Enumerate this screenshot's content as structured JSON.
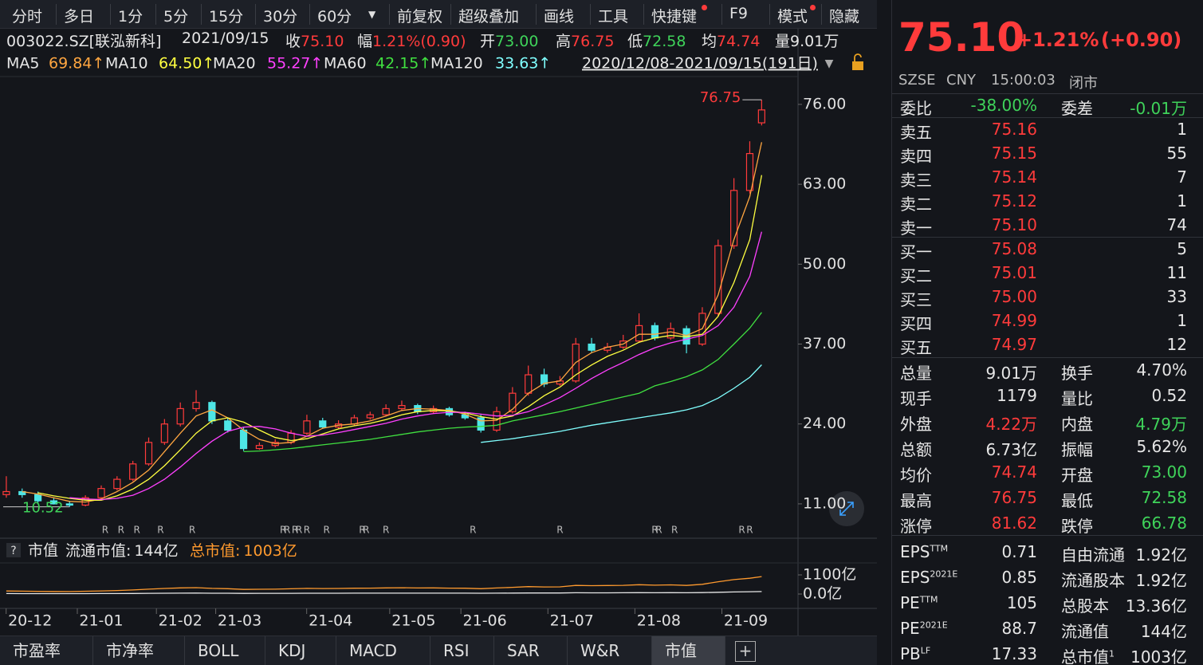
{
  "toolbar": [
    "分时",
    "多日",
    "1分",
    "5分",
    "15分",
    "30分",
    "60分",
    "前复权",
    "超级叠加",
    "画线",
    "工具",
    "快捷键",
    "F9",
    "模式",
    "隐藏"
  ],
  "info_bar": {
    "symbol": "003022.SZ[联泓新科]",
    "date": "2021/09/15",
    "items": [
      {
        "label": "收",
        "value": "75.10",
        "tone": "up"
      },
      {
        "label": "幅",
        "value": "1.21%(0.90)",
        "tone": "up"
      },
      {
        "label": "开",
        "value": "73.00",
        "tone": "down"
      },
      {
        "label": "高",
        "value": "76.75",
        "tone": "up"
      },
      {
        "label": "低",
        "value": "72.58",
        "tone": "down"
      },
      {
        "label": "均",
        "value": "74.74",
        "tone": "up"
      },
      {
        "label": "量",
        "value": "9.01万",
        "tone": "plain"
      }
    ]
  },
  "range_label": "2020/12/08-2021/09/15(191日)",
  "chart_data": [
    {
      "type": "candlestick",
      "x": [
        0,
        4,
        8,
        12,
        16,
        20,
        24,
        28,
        32,
        36,
        40,
        44,
        48,
        52,
        56,
        60,
        64,
        68,
        72,
        76,
        80,
        84,
        88,
        92,
        96,
        100,
        104,
        108,
        112,
        116,
        120,
        124,
        128,
        132,
        136,
        140,
        144,
        148,
        152,
        156,
        160,
        164,
        168,
        172,
        176,
        180,
        184,
        188,
        191
      ],
      "open": [
        12.5,
        13,
        12.5,
        11.5,
        11,
        10.8,
        12,
        13.5,
        15,
        17.5,
        21,
        24,
        26.5,
        27.5,
        24.5,
        23,
        20,
        20.5,
        21,
        22.5,
        24.5,
        23.5,
        24,
        25,
        25.5,
        26.5,
        27,
        26,
        26.5,
        25.5,
        25,
        23,
        26,
        29,
        32,
        30.5,
        31,
        37,
        36,
        36.5,
        37.5,
        40,
        38,
        39.5,
        37,
        42,
        53,
        62,
        73
      ],
      "high": [
        15.5,
        13.5,
        13,
        12,
        11.5,
        12.4,
        14,
        15.5,
        18,
        21.8,
        24.8,
        27.5,
        29.5,
        27.8,
        25,
        23.5,
        21,
        21.5,
        23,
        25.5,
        25,
        24.6,
        25.5,
        26,
        27.2,
        27.8,
        27.3,
        27,
        26.8,
        26,
        25.5,
        26.8,
        30,
        33.5,
        33,
        31.8,
        38,
        38,
        37.2,
        38.5,
        42,
        40.5,
        40.5,
        40,
        43,
        54,
        64,
        70,
        76.75
      ],
      "low": [
        12,
        12,
        11.2,
        10.9,
        10.52,
        10.6,
        11.6,
        13.2,
        14.7,
        17.2,
        20.6,
        23.6,
        26,
        24,
        22.6,
        19.6,
        19.8,
        20.2,
        20.7,
        22.2,
        23.2,
        23.2,
        23.7,
        24.7,
        25.2,
        26.2,
        25.6,
        25.7,
        25.2,
        24.7,
        22.6,
        22.7,
        25.7,
        28.6,
        30,
        30.2,
        30.7,
        35.6,
        35.6,
        36.2,
        37.2,
        37.6,
        37.7,
        35.5,
        36.7,
        41.6,
        52.5,
        61.5,
        72.58
      ],
      "close": [
        13,
        12.5,
        11.5,
        11,
        10.8,
        12,
        13.5,
        15,
        17.5,
        21,
        24,
        26.5,
        27.5,
        24.5,
        23,
        20,
        20.5,
        21,
        22.5,
        24.5,
        23.5,
        24,
        25,
        25.5,
        26.5,
        27,
        26,
        26.5,
        25.5,
        25,
        23,
        26,
        29,
        32,
        30.5,
        31,
        37,
        36,
        36.5,
        37.5,
        40,
        38,
        39.5,
        37,
        42,
        53,
        62,
        68,
        75.1
      ],
      "up_color": "#ff3b3b",
      "down_color": "#4ee6e6",
      "series": [
        {
          "name": "MA5",
          "color": "#ffa640",
          "last_label": "69.84↑",
          "values": [
            null,
            13,
            12.6,
            12,
            11.4,
            11.3,
            11.8,
            13,
            14.5,
            16.5,
            19.5,
            22.5,
            25.3,
            26.3,
            25,
            23,
            21.5,
            20.8,
            21,
            22,
            23.3,
            23.8,
            24,
            24.5,
            25.3,
            26.2,
            26.5,
            26.4,
            26.2,
            25.6,
            24.5,
            24.6,
            26.4,
            29,
            30.6,
            31,
            34,
            35.6,
            36.5,
            37,
            38.6,
            38.6,
            39,
            38.4,
            39.5,
            45,
            54,
            61,
            69.84
          ]
        },
        {
          "name": "MA10",
          "color": "#ffff40",
          "last_label": "64.50↑",
          "values": [
            null,
            null,
            12.8,
            12.3,
            11.9,
            11.6,
            11.6,
            12.3,
            13.4,
            15,
            17.2,
            19.8,
            22.5,
            24.5,
            25,
            24.3,
            23,
            21.8,
            21.3,
            21.6,
            22.4,
            23.2,
            23.7,
            24.1,
            24.7,
            25.5,
            26,
            26.2,
            26.1,
            25.8,
            25.2,
            24.8,
            25.3,
            26.8,
            28.6,
            30,
            32,
            33.6,
            35,
            36,
            37.3,
            38,
            38.4,
            38.2,
            38.6,
            41.5,
            47,
            54,
            64.5
          ]
        },
        {
          "name": "MA20",
          "color": "#ff40ff",
          "last_label": "55.27↑",
          "values": [
            null,
            null,
            null,
            null,
            12,
            11.8,
            11.7,
            11.9,
            12.4,
            13.5,
            15,
            17,
            19.2,
            21.2,
            22.8,
            23.5,
            23.6,
            23.2,
            22.5,
            22,
            22.2,
            22.6,
            23.1,
            23.6,
            24.1,
            24.8,
            25.3,
            25.7,
            25.9,
            25.9,
            25.6,
            25.3,
            25.4,
            26,
            27.1,
            28.3,
            29.8,
            31.4,
            32.8,
            34,
            35.3,
            36.4,
            37.2,
            37.8,
            38.4,
            40,
            43,
            48,
            55.27
          ]
        },
        {
          "name": "MA60",
          "color": "#40e040",
          "last_label": "42.15↑",
          "values": [
            null,
            null,
            null,
            null,
            null,
            null,
            null,
            null,
            null,
            null,
            null,
            null,
            null,
            null,
            null,
            19.5,
            19.6,
            19.8,
            20,
            20.3,
            20.6,
            20.9,
            21.2,
            21.5,
            21.9,
            22.3,
            22.7,
            23,
            23.3,
            23.5,
            23.6,
            23.8,
            24.5,
            25,
            25.5,
            26,
            26.6,
            27.2,
            27.8,
            28.4,
            29,
            30.2,
            30.9,
            31.7,
            32.8,
            34.5,
            37,
            39.6,
            42.15
          ]
        },
        {
          "name": "MA120",
          "color": "#80ffff",
          "last_label": "33.63↑",
          "values": [
            null,
            null,
            null,
            null,
            null,
            null,
            null,
            null,
            null,
            null,
            null,
            null,
            null,
            null,
            null,
            null,
            null,
            null,
            null,
            null,
            null,
            null,
            null,
            null,
            null,
            null,
            null,
            null,
            null,
            null,
            21,
            21.3,
            21.6,
            22,
            22.4,
            22.8,
            23.3,
            23.8,
            24.2,
            24.6,
            25,
            25.4,
            25.8,
            26.3,
            27,
            28.2,
            29.8,
            31.6,
            33.63
          ]
        }
      ],
      "xlim": [
        -1.6,
        200
      ],
      "ylim": [
        5.8,
        80.4
      ],
      "yticks": [
        {
          "value": 76,
          "label": "76.00"
        },
        {
          "value": 63,
          "label": "63.00"
        },
        {
          "value": 50,
          "label": "50.00"
        },
        {
          "value": 37,
          "label": "37.00"
        },
        {
          "value": 24,
          "label": "24.00"
        },
        {
          "value": 11,
          "label": "11.00"
        }
      ],
      "annotations": [
        {
          "text": "76.75",
          "x": 191,
          "y": 76.75,
          "side": "high"
        },
        {
          "text": "10.52",
          "x": 16,
          "y": 10.52,
          "side": "low"
        }
      ],
      "event_markers": [
        {
          "x": 25,
          "label": "R"
        },
        {
          "x": 29,
          "label": "R"
        },
        {
          "x": 33,
          "label": "R"
        },
        {
          "x": 39,
          "label": "R"
        },
        {
          "x": 47,
          "label": "R"
        },
        {
          "x": 70,
          "label": "R"
        },
        {
          "x": 71,
          "label": "R"
        },
        {
          "x": 73,
          "label": "R"
        },
        {
          "x": 74,
          "label": "R"
        },
        {
          "x": 76,
          "label": "R"
        },
        {
          "x": 81,
          "label": "R"
        },
        {
          "x": 90,
          "label": "R"
        },
        {
          "x": 91,
          "label": "R"
        },
        {
          "x": 96,
          "label": "R"
        },
        {
          "x": 118,
          "label": "R"
        },
        {
          "x": 140,
          "label": "R"
        },
        {
          "x": 164,
          "label": "R"
        },
        {
          "x": 165,
          "label": "R"
        },
        {
          "x": 169,
          "label": "R"
        },
        {
          "x": 186,
          "label": "R"
        },
        {
          "x": 188,
          "label": "R"
        }
      ],
      "grid": false
    },
    {
      "type": "line",
      "title": "市值",
      "x": [
        0,
        4,
        8,
        12,
        16,
        20,
        24,
        28,
        32,
        36,
        40,
        44,
        48,
        52,
        56,
        60,
        64,
        68,
        72,
        76,
        80,
        84,
        88,
        92,
        96,
        100,
        104,
        108,
        112,
        116,
        120,
        124,
        128,
        132,
        136,
        140,
        144,
        148,
        152,
        156,
        160,
        164,
        168,
        172,
        176,
        180,
        184,
        188,
        191
      ],
      "series": [
        {
          "name": "流通市值:",
          "last_label": "144亿",
          "color": "#e8e8e8",
          "values": [
            25,
            24,
            22,
            21,
            21,
            23,
            26,
            29,
            34,
            40,
            46,
            51,
            53,
            47,
            44,
            38,
            39,
            40,
            43,
            47,
            45,
            46,
            48,
            49,
            51,
            52,
            50,
            51,
            49,
            48,
            44,
            50,
            56,
            61,
            59,
            60,
            71,
            69,
            70,
            72,
            77,
            73,
            76,
            71,
            81,
            102,
            119,
            131,
            144
          ]
        },
        {
          "name": "总市值:",
          "last_label": "1003亿",
          "color": "#ff9a2e",
          "values": [
            174,
            167,
            154,
            147,
            144,
            160,
            180,
            200,
            234,
            281,
            321,
            354,
            367,
            327,
            307,
            267,
            274,
            281,
            301,
            327,
            314,
            321,
            334,
            341,
            354,
            361,
            347,
            354,
            341,
            334,
            307,
            347,
            387,
            428,
            407,
            414,
            494,
            481,
            488,
            501,
            534,
            508,
            528,
            494,
            561,
            708,
            828,
            908,
            1003
          ]
        }
      ],
      "xlim": [
        -1.6,
        200
      ],
      "ylim": [
        -688,
        1696
      ],
      "yticks": [
        {
          "value": 1100,
          "label": "1100亿"
        },
        {
          "value": 0,
          "label": "0.0亿"
        }
      ],
      "xticks": [
        {
          "value": 6,
          "label": "20-12"
        },
        {
          "value": 24,
          "label": "21-01"
        },
        {
          "value": 44,
          "label": "21-02"
        },
        {
          "value": 59,
          "label": "21-03"
        },
        {
          "value": 82,
          "label": "21-04"
        },
        {
          "value": 103,
          "label": "21-05"
        },
        {
          "value": 121,
          "label": "21-06"
        },
        {
          "value": 143,
          "label": "21-07"
        },
        {
          "value": 165,
          "label": "21-08"
        },
        {
          "value": 187,
          "label": "21-09"
        }
      ]
    }
  ],
  "quote": {
    "price": "75.10",
    "change": "+1.21%",
    "change_abs": "(+0.90)",
    "market_line": [
      "SZSE",
      "CNY",
      "15:00:03",
      "闭市"
    ],
    "ratio": [
      {
        "text": "委比"
      },
      {
        "text": "-38.00%",
        "tone": "down"
      },
      {
        "text": "委差"
      },
      {
        "text": "-0.01万",
        "tone": "down"
      }
    ],
    "asks": [
      [
        "卖五",
        "75.16",
        "1"
      ],
      [
        "卖四",
        "75.15",
        "55"
      ],
      [
        "卖三",
        "75.14",
        "7"
      ],
      [
        "卖二",
        "75.12",
        "1"
      ],
      [
        "卖一",
        "75.10",
        "74"
      ]
    ],
    "bids": [
      [
        "买一",
        "75.08",
        "5"
      ],
      [
        "买二",
        "75.01",
        "11"
      ],
      [
        "买三",
        "75.00",
        "33"
      ],
      [
        "买四",
        "74.99",
        "1"
      ],
      [
        "买五",
        "74.97",
        "12"
      ]
    ],
    "stats": [
      [
        {
          "text": "总量"
        },
        {
          "text": "9.01万"
        },
        {
          "text": "换手"
        },
        {
          "text": "4.70%"
        }
      ],
      [
        {
          "text": "现手"
        },
        {
          "text": "1179"
        },
        {
          "text": "量比"
        },
        {
          "text": "0.52"
        }
      ],
      [
        {
          "text": "外盘"
        },
        {
          "text": "4.22万",
          "tone": "up"
        },
        {
          "text": "内盘"
        },
        {
          "text": "4.79万",
          "tone": "down"
        }
      ],
      [
        {
          "text": "总额"
        },
        {
          "text": "6.73亿"
        },
        {
          "text": "振幅"
        },
        {
          "text": "5.62%"
        }
      ],
      [
        {
          "text": "均价"
        },
        {
          "text": "74.74",
          "tone": "up"
        },
        {
          "text": "开盘"
        },
        {
          "text": "73.00",
          "tone": "down"
        }
      ],
      [
        {
          "text": "最高"
        },
        {
          "text": "76.75",
          "tone": "up"
        },
        {
          "text": "最低"
        },
        {
          "text": "72.58",
          "tone": "down"
        }
      ],
      [
        {
          "text": "涨停"
        },
        {
          "text": "81.62",
          "tone": "up"
        },
        {
          "text": "跌停"
        },
        {
          "text": "66.78",
          "tone": "down"
        }
      ],
      [
        {
          "text": "EPS",
          "sup": "TTM"
        },
        {
          "text": "0.71"
        },
        {
          "text": "自由流通"
        },
        {
          "text": "1.92亿"
        }
      ],
      [
        {
          "text": "EPS",
          "sup": "2021E"
        },
        {
          "text": "0.85"
        },
        {
          "text": "流通股本"
        },
        {
          "text": "1.92亿"
        }
      ],
      [
        {
          "text": "PE",
          "sup": "TTM"
        },
        {
          "text": "105"
        },
        {
          "text": "总股本"
        },
        {
          "text": "13.36亿"
        }
      ],
      [
        {
          "text": "PE",
          "sup": "2021E"
        },
        {
          "text": "88.7"
        },
        {
          "text": "流通值"
        },
        {
          "text": "144亿"
        }
      ],
      [
        {
          "text": "PB",
          "sup": "LF"
        },
        {
          "text": "17.33"
        },
        {
          "text": "总市值",
          "sup": "1"
        },
        {
          "text": "1003亿"
        }
      ]
    ]
  },
  "tabs": [
    "市盈率",
    "市净率",
    "BOLL",
    "KDJ",
    "MACD",
    "RSI",
    "SAR",
    "W&R",
    "市值"
  ],
  "active_tab": 8
}
